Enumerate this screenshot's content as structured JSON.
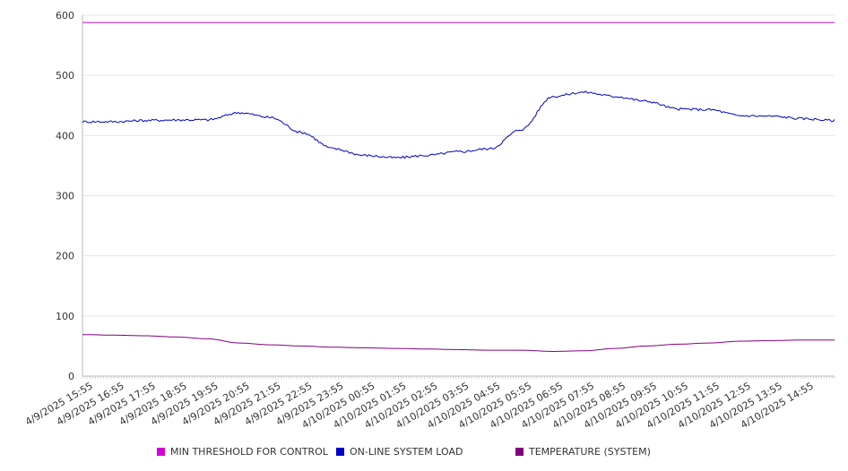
{
  "colors": {
    "min_threshold": "#d400d4",
    "online_load": "#0000cc",
    "temperature": "#800080",
    "grid": "#e6e6e6",
    "axis": "#bbbbbb"
  },
  "chart_data": {
    "type": "line",
    "title": "",
    "xlabel": "",
    "ylabel": "",
    "ylim": [
      0,
      600
    ],
    "yticks": [
      0,
      100,
      200,
      300,
      400,
      500,
      600
    ],
    "grid": true,
    "legend_position": "bottom",
    "x_tick_labels": [
      "4/9/2025 15:55",
      "4/9/2025 16:55",
      "4/9/2025 17:55",
      "4/9/2025 18:55",
      "4/9/2025 19:55",
      "4/9/2025 20:55",
      "4/9/2025 21:55",
      "4/9/2025 22:55",
      "4/9/2025 23:55",
      "4/10/2025 00:55",
      "4/10/2025 01:55",
      "4/10/2025 02:55",
      "4/10/2025 03:55",
      "4/10/2025 04:55",
      "4/10/2025 05:55",
      "4/10/2025 06:55",
      "4/10/2025 07:55",
      "4/10/2025 08:55",
      "4/10/2025 09:55",
      "4/10/2025 10:55",
      "4/10/2025 11:55",
      "4/10/2025 12:55",
      "4/10/2025 13:55",
      "4/10/2025 14:55"
    ],
    "series": [
      {
        "name": "MIN THRESHOLD FOR CONTROL",
        "color_key": "min_threshold",
        "values": [
          588,
          588,
          588,
          588,
          588,
          588,
          588,
          588,
          588,
          588,
          588,
          588,
          588,
          588,
          588,
          588,
          588,
          588,
          588,
          588,
          588,
          588,
          588,
          588,
          588
        ]
      },
      {
        "name": "ON-LINE SYSTEM LOAD",
        "color_key": "online_load",
        "values": [
          423,
          423,
          425,
          426,
          426,
          438,
          430,
          405,
          378,
          367,
          363,
          367,
          373,
          378,
          410,
          465,
          472,
          465,
          457,
          444,
          443,
          433,
          432,
          428,
          425
        ]
      },
      {
        "name": "TEMPERATURE (SYSTEM)",
        "color_key": "temperature",
        "values": [
          69,
          68,
          67,
          65,
          62,
          55,
          52,
          50,
          48,
          47,
          46,
          45,
          44,
          43,
          43,
          41,
          42,
          46,
          50,
          53,
          55,
          58,
          59,
          60,
          60
        ]
      }
    ]
  }
}
